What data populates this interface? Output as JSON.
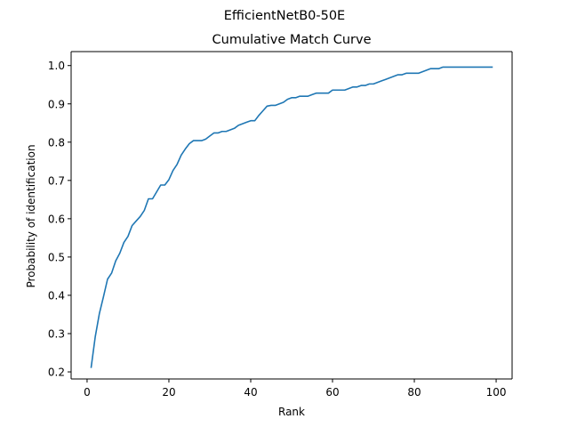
{
  "figure": {
    "suptitle": "EfficientNetB0-50E"
  },
  "chart_data": {
    "type": "line",
    "title": "Cumulative Match Curve",
    "xlabel": "Rank",
    "ylabel": "Probability of identification",
    "xlim": [
      -3.9,
      103.9
    ],
    "ylim": [
      0.1815,
      1.0365
    ],
    "xticks": [
      0,
      20,
      40,
      60,
      80,
      100
    ],
    "yticks": [
      0.2,
      0.3,
      0.4,
      0.5,
      0.6,
      0.7,
      0.8,
      0.9,
      1.0
    ],
    "grid": false,
    "legend": "none",
    "colors": {
      "line": "#1f77b4"
    },
    "series": [
      {
        "x": [
          1,
          2,
          3,
          4,
          5,
          6,
          7,
          8,
          9,
          10,
          11,
          12,
          13,
          14,
          15,
          16,
          17,
          18,
          19,
          20,
          21,
          22,
          23,
          24,
          25,
          26,
          27,
          28,
          29,
          30,
          31,
          32,
          33,
          34,
          35,
          36,
          37,
          38,
          39,
          40,
          41,
          42,
          43,
          44,
          45,
          46,
          47,
          48,
          49,
          50,
          51,
          52,
          53,
          54,
          55,
          56,
          57,
          58,
          59,
          60,
          61,
          62,
          63,
          64,
          65,
          66,
          67,
          68,
          69,
          70,
          71,
          72,
          73,
          74,
          75,
          76,
          77,
          78,
          79,
          80,
          81,
          82,
          83,
          84,
          85,
          86,
          87,
          88,
          89,
          90,
          91,
          92,
          93,
          94,
          95,
          96,
          97,
          98,
          99
        ],
        "values": [
          0.212,
          0.292,
          0.352,
          0.396,
          0.442,
          0.458,
          0.49,
          0.51,
          0.538,
          0.554,
          0.582,
          0.594,
          0.606,
          0.622,
          0.652,
          0.652,
          0.67,
          0.688,
          0.688,
          0.702,
          0.726,
          0.742,
          0.766,
          0.782,
          0.796,
          0.804,
          0.804,
          0.804,
          0.808,
          0.816,
          0.824,
          0.824,
          0.828,
          0.828,
          0.832,
          0.836,
          0.844,
          0.848,
          0.852,
          0.856,
          0.856,
          0.87,
          0.882,
          0.894,
          0.896,
          0.896,
          0.9,
          0.904,
          0.912,
          0.916,
          0.916,
          0.92,
          0.92,
          0.92,
          0.924,
          0.928,
          0.928,
          0.928,
          0.928,
          0.936,
          0.936,
          0.936,
          0.936,
          0.94,
          0.944,
          0.944,
          0.948,
          0.948,
          0.952,
          0.952,
          0.956,
          0.96,
          0.964,
          0.968,
          0.972,
          0.976,
          0.976,
          0.98,
          0.98,
          0.98,
          0.98,
          0.984,
          0.988,
          0.992,
          0.992,
          0.992,
          0.996,
          0.996,
          0.996,
          0.996,
          0.996,
          0.996,
          0.996,
          0.996,
          0.996,
          0.996,
          0.996,
          0.996,
          0.996
        ]
      }
    ]
  }
}
